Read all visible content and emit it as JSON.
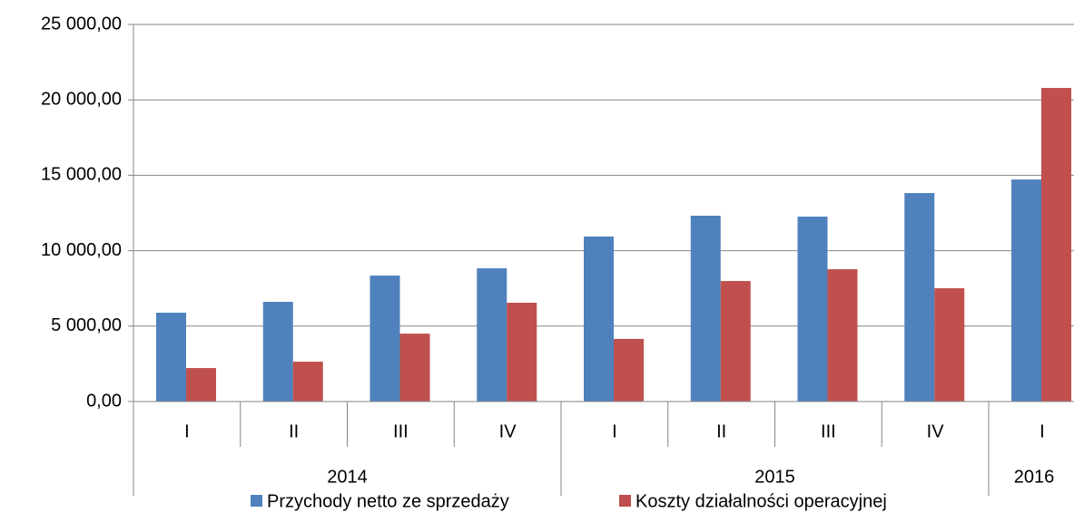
{
  "chart_data": {
    "type": "bar",
    "categories": [
      "I",
      "II",
      "III",
      "IV",
      "I",
      "II",
      "III",
      "IV",
      "I"
    ],
    "years": [
      "2014",
      null,
      null,
      null,
      "2015",
      null,
      null,
      null,
      "2016"
    ],
    "series": [
      {
        "name": "Przychody netto ze sprzedaży",
        "color": "#4f81bd",
        "values": [
          5890,
          6610,
          8350,
          8830,
          10940,
          12320,
          12260,
          13820,
          14720
        ]
      },
      {
        "name": "Koszty działalności operacyjnej",
        "color": "#c0504d",
        "values": [
          2220,
          2640,
          4500,
          6550,
          4150,
          7990,
          8770,
          7510,
          20790
        ]
      }
    ],
    "ylim": [
      0,
      25000
    ],
    "yticks": [
      {
        "value": 0,
        "label": "0,00"
      },
      {
        "value": 5000,
        "label": "5 000,00"
      },
      {
        "value": 10000,
        "label": "10 000,00"
      },
      {
        "value": 15000,
        "label": "15 000,00"
      },
      {
        "value": 20000,
        "label": "20 000,00"
      },
      {
        "value": 25000,
        "label": "25 000,00"
      }
    ],
    "grid": true,
    "legend": "bottom"
  }
}
